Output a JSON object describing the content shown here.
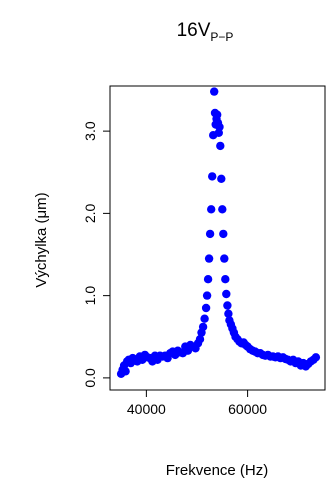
{
  "chart_data": {
    "type": "scatter",
    "title": {
      "main": "16V",
      "subscript": "P−P"
    },
    "xlabel": "Frekvence (Hz)",
    "ylabel": "Výchylka (μm)",
    "xlim": [
      34000,
      74500
    ],
    "ylim": [
      -0.05,
      3.5
    ],
    "xticks": [
      {
        "value": 40000,
        "label": "40000"
      },
      {
        "value": 60000,
        "label": "60000"
      }
    ],
    "yticks": [
      {
        "value": 0.0,
        "label": "0.0"
      },
      {
        "value": 1.0,
        "label": "1.0"
      },
      {
        "value": 2.0,
        "label": "2.0"
      },
      {
        "value": 3.0,
        "label": "3.0"
      }
    ],
    "grid": false,
    "legend": "none",
    "colors": {
      "points": "#0000ff",
      "axes": "#000000"
    },
    "series": [
      {
        "points": [
          [
            35000,
            0.05
          ],
          [
            35300,
            0.1
          ],
          [
            35600,
            0.15
          ],
          [
            35900,
            0.08
          ],
          [
            36200,
            0.2
          ],
          [
            36500,
            0.22
          ],
          [
            36900,
            0.18
          ],
          [
            37300,
            0.24
          ],
          [
            37700,
            0.21
          ],
          [
            38200,
            0.2
          ],
          [
            38700,
            0.26
          ],
          [
            39200,
            0.22
          ],
          [
            39700,
            0.28
          ],
          [
            40200,
            0.25
          ],
          [
            40700,
            0.24
          ],
          [
            41200,
            0.2
          ],
          [
            41700,
            0.27
          ],
          [
            42200,
            0.22
          ],
          [
            42700,
            0.27
          ],
          [
            43200,
            0.26
          ],
          [
            43700,
            0.27
          ],
          [
            44200,
            0.24
          ],
          [
            44700,
            0.3
          ],
          [
            45200,
            0.32
          ],
          [
            45700,
            0.28
          ],
          [
            46200,
            0.33
          ],
          [
            46700,
            0.31
          ],
          [
            47200,
            0.3
          ],
          [
            47700,
            0.38
          ],
          [
            48200,
            0.33
          ],
          [
            48700,
            0.4
          ],
          [
            49200,
            0.38
          ],
          [
            49700,
            0.36
          ],
          [
            50200,
            0.42
          ],
          [
            50600,
            0.47
          ],
          [
            50900,
            0.55
          ],
          [
            51200,
            0.62
          ],
          [
            51500,
            0.72
          ],
          [
            51800,
            0.85
          ],
          [
            52000,
            1.0
          ],
          [
            52200,
            1.2
          ],
          [
            52400,
            1.45
          ],
          [
            52600,
            1.75
          ],
          [
            52800,
            2.05
          ],
          [
            53000,
            2.45
          ],
          [
            53200,
            2.95
          ],
          [
            53400,
            3.48
          ],
          [
            53550,
            3.22
          ],
          [
            53700,
            3.08
          ],
          [
            53850,
            3.15
          ],
          [
            54000,
            3.2
          ],
          [
            54150,
            3.1
          ],
          [
            54300,
            2.98
          ],
          [
            54450,
            3.05
          ],
          [
            54600,
            2.82
          ],
          [
            54800,
            2.42
          ],
          [
            55000,
            2.05
          ],
          [
            55200,
            1.75
          ],
          [
            55400,
            1.45
          ],
          [
            55600,
            1.2
          ],
          [
            55800,
            1.02
          ],
          [
            56000,
            0.88
          ],
          [
            56200,
            0.78
          ],
          [
            56400,
            0.7
          ],
          [
            56700,
            0.65
          ],
          [
            57000,
            0.6
          ],
          [
            57300,
            0.55
          ],
          [
            57600,
            0.5
          ],
          [
            58000,
            0.47
          ],
          [
            58400,
            0.44
          ],
          [
            58800,
            0.42
          ],
          [
            59200,
            0.43
          ],
          [
            59600,
            0.4
          ],
          [
            60000,
            0.38
          ],
          [
            60500,
            0.35
          ],
          [
            61000,
            0.33
          ],
          [
            61500,
            0.32
          ],
          [
            62000,
            0.3
          ],
          [
            62500,
            0.3
          ],
          [
            63000,
            0.28
          ],
          [
            63500,
            0.27
          ],
          [
            64000,
            0.28
          ],
          [
            64500,
            0.26
          ],
          [
            65000,
            0.26
          ],
          [
            65500,
            0.25
          ],
          [
            66000,
            0.26
          ],
          [
            66500,
            0.24
          ],
          [
            67000,
            0.25
          ],
          [
            67500,
            0.23
          ],
          [
            68000,
            0.22
          ],
          [
            68500,
            0.2
          ],
          [
            69000,
            0.22
          ],
          [
            69500,
            0.18
          ],
          [
            70000,
            0.2
          ],
          [
            70500,
            0.15
          ],
          [
            71000,
            0.18
          ],
          [
            71500,
            0.14
          ],
          [
            72000,
            0.17
          ],
          [
            72500,
            0.2
          ],
          [
            73000,
            0.22
          ],
          [
            73500,
            0.25
          ]
        ]
      }
    ]
  }
}
